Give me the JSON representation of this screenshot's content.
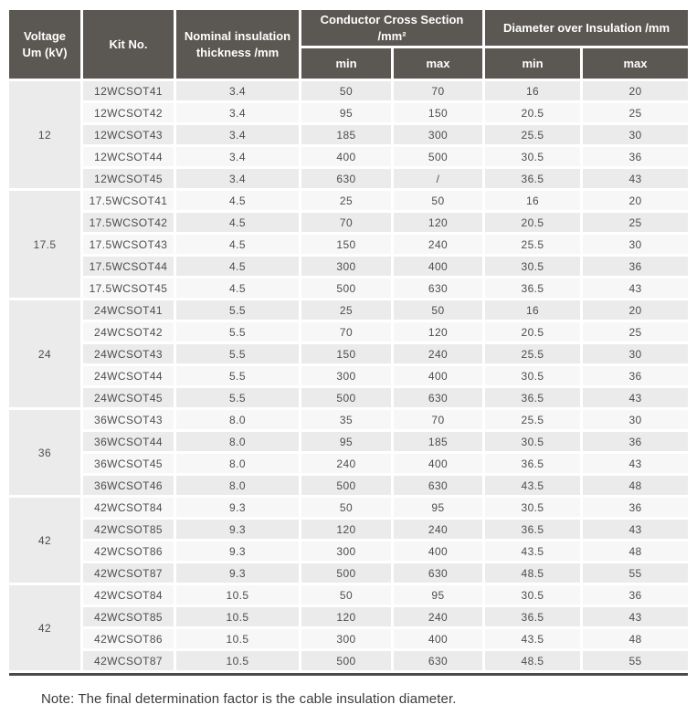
{
  "colors": {
    "header_bg": "#5b5752",
    "header_text": "#ffffff",
    "row_dark": "#ebebeb",
    "row_light": "#f7f7f7",
    "body_text": "#4d4d4d",
    "bottom_rule": "#4a4a4a"
  },
  "table": {
    "headers": {
      "voltage": "Voltage\nUm (kV)",
      "kit_no": "Kit No.",
      "thickness": "Nominal insulation thickness /mm",
      "conductor_cross_section": "Conductor Cross Section /mm²",
      "diameter_over_insulation": "Diameter over Insulation /mm",
      "min": "min",
      "max": "max"
    },
    "groups": [
      {
        "voltage": "12",
        "rows": [
          {
            "kit": "12WCSOT41",
            "thickness": "3.4",
            "ccs_min": "50",
            "ccs_max": "70",
            "doi_min": "16",
            "doi_max": "20"
          },
          {
            "kit": "12WCSOT42",
            "thickness": "3.4",
            "ccs_min": "95",
            "ccs_max": "150",
            "doi_min": "20.5",
            "doi_max": "25"
          },
          {
            "kit": "12WCSOT43",
            "thickness": "3.4",
            "ccs_min": "185",
            "ccs_max": "300",
            "doi_min": "25.5",
            "doi_max": "30"
          },
          {
            "kit": "12WCSOT44",
            "thickness": "3.4",
            "ccs_min": "400",
            "ccs_max": "500",
            "doi_min": "30.5",
            "doi_max": "36"
          },
          {
            "kit": "12WCSOT45",
            "thickness": "3.4",
            "ccs_min": "630",
            "ccs_max": "/",
            "doi_min": "36.5",
            "doi_max": "43"
          }
        ]
      },
      {
        "voltage": "17.5",
        "rows": [
          {
            "kit": "17.5WCSOT41",
            "thickness": "4.5",
            "ccs_min": "25",
            "ccs_max": "50",
            "doi_min": "16",
            "doi_max": "20"
          },
          {
            "kit": "17.5WCSOT42",
            "thickness": "4.5",
            "ccs_min": "70",
            "ccs_max": "120",
            "doi_min": "20.5",
            "doi_max": "25"
          },
          {
            "kit": "17.5WCSOT43",
            "thickness": "4.5",
            "ccs_min": "150",
            "ccs_max": "240",
            "doi_min": "25.5",
            "doi_max": "30"
          },
          {
            "kit": "17.5WCSOT44",
            "thickness": "4.5",
            "ccs_min": "300",
            "ccs_max": "400",
            "doi_min": "30.5",
            "doi_max": "36"
          },
          {
            "kit": "17.5WCSOT45",
            "thickness": "4.5",
            "ccs_min": "500",
            "ccs_max": "630",
            "doi_min": "36.5",
            "doi_max": "43"
          }
        ]
      },
      {
        "voltage": "24",
        "rows": [
          {
            "kit": "24WCSOT41",
            "thickness": "5.5",
            "ccs_min": "25",
            "ccs_max": "50",
            "doi_min": "16",
            "doi_max": "20"
          },
          {
            "kit": "24WCSOT42",
            "thickness": "5.5",
            "ccs_min": "70",
            "ccs_max": "120",
            "doi_min": "20.5",
            "doi_max": "25"
          },
          {
            "kit": "24WCSOT43",
            "thickness": "5.5",
            "ccs_min": "150",
            "ccs_max": "240",
            "doi_min": "25.5",
            "doi_max": "30"
          },
          {
            "kit": "24WCSOT44",
            "thickness": "5.5",
            "ccs_min": "300",
            "ccs_max": "400",
            "doi_min": "30.5",
            "doi_max": "36"
          },
          {
            "kit": "24WCSOT45",
            "thickness": "5.5",
            "ccs_min": "500",
            "ccs_max": "630",
            "doi_min": "36.5",
            "doi_max": "43"
          }
        ]
      },
      {
        "voltage": "36",
        "rows": [
          {
            "kit": "36WCSOT43",
            "thickness": "8.0",
            "ccs_min": "35",
            "ccs_max": "70",
            "doi_min": "25.5",
            "doi_max": "30"
          },
          {
            "kit": "36WCSOT44",
            "thickness": "8.0",
            "ccs_min": "95",
            "ccs_max": "185",
            "doi_min": "30.5",
            "doi_max": "36"
          },
          {
            "kit": "36WCSOT45",
            "thickness": "8.0",
            "ccs_min": "240",
            "ccs_max": "400",
            "doi_min": "36.5",
            "doi_max": "43"
          },
          {
            "kit": "36WCSOT46",
            "thickness": "8.0",
            "ccs_min": "500",
            "ccs_max": "630",
            "doi_min": "43.5",
            "doi_max": "48"
          }
        ]
      },
      {
        "voltage": "42",
        "rows": [
          {
            "kit": "42WCSOT84",
            "thickness": "9.3",
            "ccs_min": "50",
            "ccs_max": "95",
            "doi_min": "30.5",
            "doi_max": "36"
          },
          {
            "kit": "42WCSOT85",
            "thickness": "9.3",
            "ccs_min": "120",
            "ccs_max": "240",
            "doi_min": "36.5",
            "doi_max": "43"
          },
          {
            "kit": "42WCSOT86",
            "thickness": "9.3",
            "ccs_min": "300",
            "ccs_max": "400",
            "doi_min": "43.5",
            "doi_max": "48"
          },
          {
            "kit": "42WCSOT87",
            "thickness": "9.3",
            "ccs_min": "500",
            "ccs_max": "630",
            "doi_min": "48.5",
            "doi_max": "55"
          }
        ]
      },
      {
        "voltage": "42",
        "rows": [
          {
            "kit": "42WCSOT84",
            "thickness": "10.5",
            "ccs_min": "50",
            "ccs_max": "95",
            "doi_min": "30.5",
            "doi_max": "36"
          },
          {
            "kit": "42WCSOT85",
            "thickness": "10.5",
            "ccs_min": "120",
            "ccs_max": "240",
            "doi_min": "36.5",
            "doi_max": "43"
          },
          {
            "kit": "42WCSOT86",
            "thickness": "10.5",
            "ccs_min": "300",
            "ccs_max": "400",
            "doi_min": "43.5",
            "doi_max": "48"
          },
          {
            "kit": "42WCSOT87",
            "thickness": "10.5",
            "ccs_min": "500",
            "ccs_max": "630",
            "doi_min": "48.5",
            "doi_max": "55"
          }
        ]
      }
    ]
  },
  "note": "Note: The final determination factor is the cable insulation diameter."
}
